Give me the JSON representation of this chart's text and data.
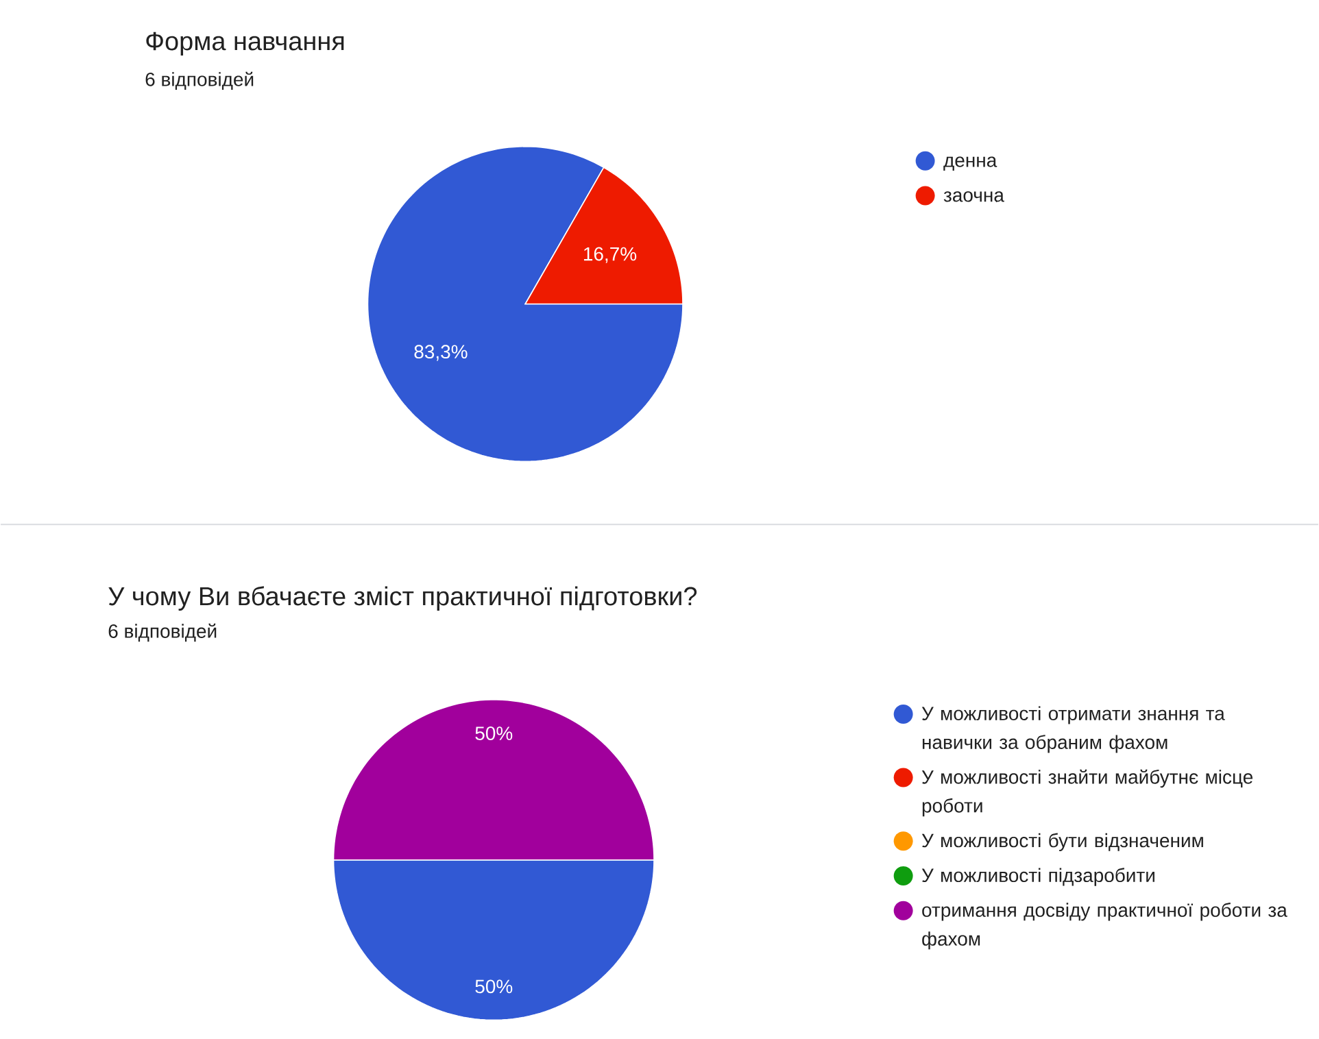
{
  "chart_data": [
    {
      "type": "pie",
      "title": "Форма навчання",
      "subtitle": "6 відповідей",
      "categories": [
        "денна",
        "заочна"
      ],
      "values": [
        83.3,
        16.7
      ],
      "colors": [
        "#3159d4",
        "#ee1b00"
      ],
      "value_labels": [
        "83,3%",
        "16,7%"
      ],
      "legend": "right"
    },
    {
      "type": "pie",
      "title": "У чому Ви вбачаєте зміст практичної підготовки?",
      "subtitle": "6 відповідей",
      "categories": [
        "У можливості отримати знання та навички за обраним фахом",
        "У можливості знайти майбутнє місце роботи",
        "У можливості бути відзначеним",
        "У можливості підзаробити",
        "отримання досвіду практичної роботи за фахом"
      ],
      "values": [
        50,
        0,
        0,
        0,
        50
      ],
      "colors": [
        "#3159d4",
        "#ee1b00",
        "#ff9800",
        "#0f9d0f",
        "#a1009c"
      ],
      "value_labels": [
        "50%",
        null,
        null,
        null,
        "50%"
      ],
      "legend": "right"
    }
  ]
}
